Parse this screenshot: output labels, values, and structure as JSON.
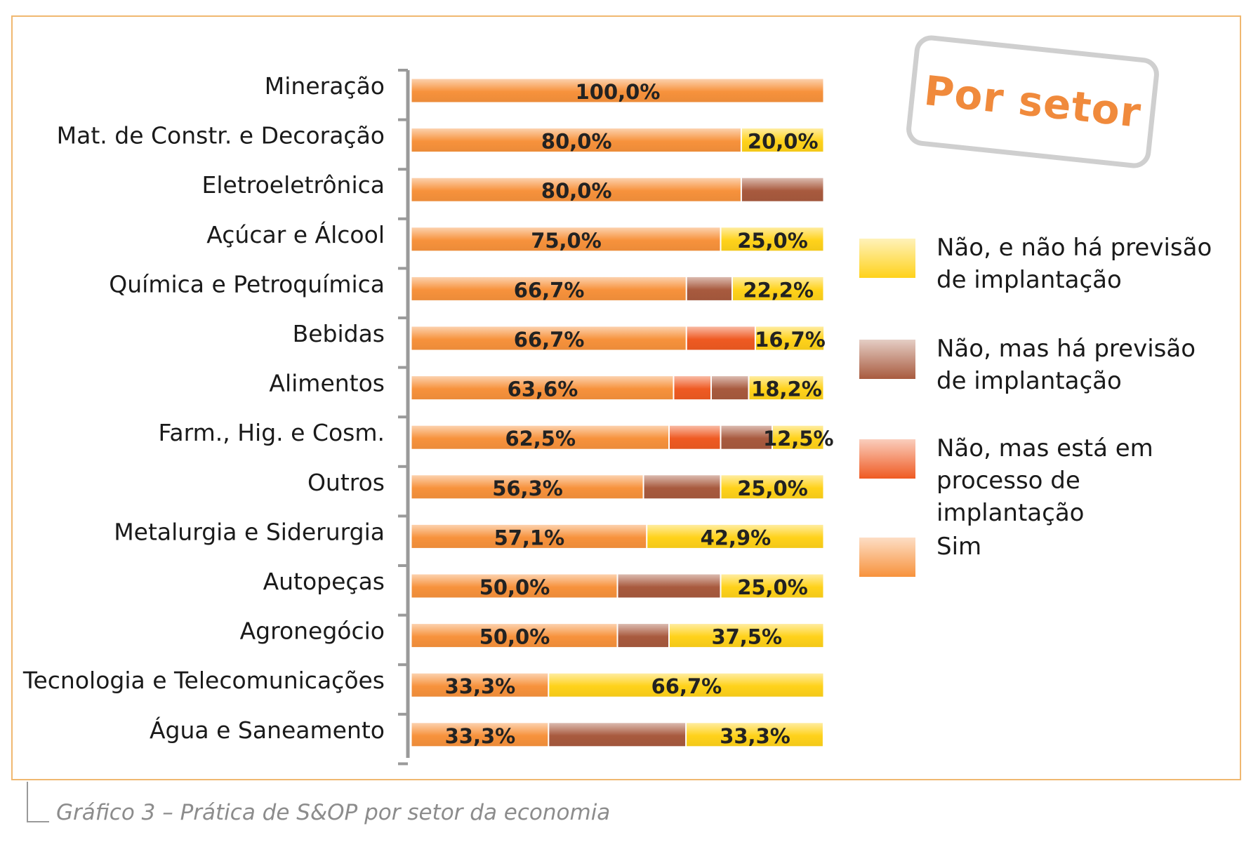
{
  "badge": {
    "text": "Por setor"
  },
  "caption": "Gráfico 3 – Prática de S&OP por setor da economia",
  "legend": [
    {
      "label": "Não, e não há previsão de implantação",
      "color": "#ffd21a"
    },
    {
      "label": "Não, mas há previsão de implantação",
      "color": "#a85a3e"
    },
    {
      "label": "Não, mas está em processo de implantação",
      "color": "#ef5a22"
    },
    {
      "label": "Sim",
      "color": "#f7923c"
    }
  ],
  "chart_data": {
    "type": "bar",
    "orientation": "horizontal",
    "stacked": true,
    "categories": [
      "Mineração",
      "Mat. de Constr. e Decoração",
      "Eletroeletrônica",
      "Açúcar e Álcool",
      "Química e Petroquímica",
      "Bebidas",
      "Alimentos",
      "Farm., Hig. e Cosm.",
      "Outros",
      "Metalurgia e Siderurgia",
      "Autopeças",
      "Agronegócio",
      "Tecnologia e Telecomunicações",
      "Água e Saneamento"
    ],
    "series": [
      {
        "name": "Sim",
        "color": "#f7923c",
        "values": [
          100.0,
          80.0,
          80.0,
          75.0,
          66.7,
          66.7,
          63.6,
          62.5,
          56.3,
          57.1,
          50.0,
          50.0,
          33.3,
          33.3
        ],
        "labels": [
          "100,0%",
          "80,0%",
          "80,0%",
          "75,0%",
          "66,7%",
          "66,7%",
          "63,6%",
          "62,5%",
          "56,3%",
          "57,1%",
          "50,0%",
          "50,0%",
          "33,3%",
          "33,3%"
        ]
      },
      {
        "name": "Não, mas está em processo de implantação",
        "color": "#ef5a22",
        "values": [
          0,
          0,
          0,
          0,
          0,
          16.7,
          9.1,
          12.5,
          0,
          0,
          0,
          0,
          0,
          0
        ],
        "labels": [
          "",
          "",
          "",
          "",
          "",
          "",
          "",
          "",
          "",
          "",
          "",
          "",
          "",
          ""
        ]
      },
      {
        "name": "Não, mas há previsão de implantação",
        "color": "#a85a3e",
        "values": [
          0,
          0,
          20.0,
          0,
          11.1,
          0,
          9.1,
          12.5,
          18.7,
          0,
          25.0,
          12.5,
          0,
          33.3
        ],
        "labels": [
          "",
          "",
          "",
          "",
          "",
          "",
          "",
          "",
          "",
          "",
          "",
          "",
          "",
          ""
        ]
      },
      {
        "name": "Não, e não há previsão de implantação",
        "color": "#ffd21a",
        "values": [
          0,
          20.0,
          0,
          25.0,
          22.2,
          16.7,
          18.2,
          12.5,
          25.0,
          42.9,
          25.0,
          37.5,
          66.7,
          33.3
        ],
        "labels": [
          "",
          "20,0%",
          "",
          "25,0%",
          "22,2%",
          "16,7%",
          "18,2%",
          "12,5%",
          "25,0%",
          "42,9%",
          "25,0%",
          "37,5%",
          "66,7%",
          "33,3%"
        ]
      }
    ],
    "xlim": [
      0,
      100
    ],
    "grid": false,
    "legend_position": "right"
  }
}
